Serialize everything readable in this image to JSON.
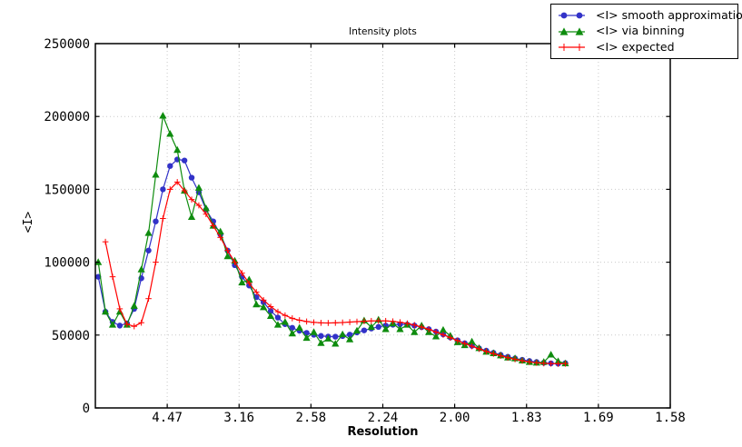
{
  "figure": {
    "background": "#ffffff",
    "frame_color": "#000000",
    "grid_color": "#c9c9c9"
  },
  "axes": {
    "x_range_invd2": [
      0.0,
      0.4
    ],
    "y_range": [
      0,
      250000
    ],
    "grid": "dotted",
    "x_ticks": [
      {
        "v": 0.05,
        "label": "4.47"
      },
      {
        "v": 0.1,
        "label": "3.16"
      },
      {
        "v": 0.15,
        "label": "2.58"
      },
      {
        "v": 0.2,
        "label": "2.24"
      },
      {
        "v": 0.25,
        "label": "2.00"
      },
      {
        "v": 0.3,
        "label": "1.83"
      },
      {
        "v": 0.35,
        "label": "1.69"
      },
      {
        "v": 0.4,
        "label": "1.58"
      }
    ],
    "y_ticks": [
      {
        "v": 0,
        "label": "0"
      },
      {
        "v": 50000,
        "label": "50000"
      },
      {
        "v": 100000,
        "label": "100000"
      },
      {
        "v": 150000,
        "label": "150000"
      },
      {
        "v": 200000,
        "label": "200000"
      },
      {
        "v": 250000,
        "label": "250000"
      }
    ]
  },
  "chart_data": {
    "type": "line",
    "title": "Intensity plots",
    "xlabel": "Resolution",
    "ylabel": "<I>",
    "x_axis_note": "x positions are 1/d^2; tick labels show resolution d in Angstrom",
    "xlim_invd2": [
      0.0,
      0.4
    ],
    "ylim": [
      0,
      250000
    ],
    "legend_position": "top-right",
    "grid": "dotted",
    "x_invd2": [
      0.002,
      0.007,
      0.012,
      0.017,
      0.022,
      0.027,
      0.032,
      0.037,
      0.042,
      0.047,
      0.052,
      0.057,
      0.062,
      0.067,
      0.072,
      0.077,
      0.082,
      0.087,
      0.092,
      0.097,
      0.102,
      0.107,
      0.112,
      0.117,
      0.122,
      0.127,
      0.132,
      0.137,
      0.142,
      0.147,
      0.152,
      0.157,
      0.162,
      0.167,
      0.172,
      0.177,
      0.182,
      0.187,
      0.192,
      0.197,
      0.202,
      0.207,
      0.212,
      0.217,
      0.222,
      0.227,
      0.232,
      0.237,
      0.242,
      0.247,
      0.252,
      0.257,
      0.262,
      0.267,
      0.272,
      0.277,
      0.282,
      0.287,
      0.292,
      0.297,
      0.302,
      0.307,
      0.312,
      0.317,
      0.322,
      0.327
    ],
    "series": [
      {
        "name": "<I> smooth approximation",
        "marker": "circle",
        "color": "#3232c8",
        "values": [
          90000,
          66000,
          59000,
          56500,
          58000,
          68000,
          89000,
          108000,
          128000,
          150000,
          166000,
          170500,
          169800,
          158000,
          148000,
          136000,
          128000,
          119000,
          108000,
          98000,
          90000,
          84000,
          76000,
          72500,
          66500,
          62000,
          57500,
          55000,
          53000,
          51500,
          50200,
          49400,
          49000,
          48900,
          49300,
          50300,
          51800,
          53200,
          54500,
          55600,
          56500,
          57100,
          57400,
          57200,
          56500,
          55400,
          54000,
          52400,
          50500,
          48400,
          46400,
          44400,
          42600,
          40900,
          39300,
          37800,
          36400,
          35100,
          34000,
          33000,
          32200,
          31500,
          31000,
          30600,
          30400,
          30700
        ]
      },
      {
        "name": "<I> via binning",
        "marker": "triangle",
        "color": "#0e8c0e",
        "values": [
          100000,
          66000,
          57000,
          66000,
          57000,
          70000,
          95000,
          120000,
          160000,
          200500,
          188000,
          177000,
          149000,
          131000,
          151000,
          137000,
          125000,
          121000,
          104000,
          101000,
          86000,
          88000,
          71000,
          69000,
          63000,
          57000,
          59000,
          51000,
          55000,
          48000,
          52000,
          44500,
          47500,
          44000,
          50500,
          47000,
          53000,
          60000,
          55500,
          60500,
          54000,
          58000,
          54000,
          57000,
          52000,
          56500,
          52000,
          49000,
          53500,
          49500,
          45000,
          43000,
          45500,
          41000,
          38500,
          37500,
          36000,
          34500,
          34000,
          32500,
          31500,
          31000,
          31500,
          36500,
          32000,
          30500
        ]
      },
      {
        "name": "<I> expected",
        "marker": "plus",
        "color": "#ff0000",
        "values": [
          null,
          114000,
          90000,
          68000,
          57500,
          56000,
          58500,
          75000,
          100000,
          130000,
          150000,
          155000,
          149000,
          143000,
          139000,
          133000,
          125000,
          117000,
          108000,
          100000,
          92500,
          85500,
          79500,
          74000,
          69500,
          66000,
          63500,
          61500,
          60200,
          59300,
          58700,
          58400,
          58300,
          58400,
          58600,
          58900,
          59200,
          59500,
          59700,
          59800,
          59700,
          59400,
          58800,
          58000,
          56900,
          55500,
          53900,
          52100,
          50200,
          48200,
          46200,
          44200,
          42300,
          40500,
          38800,
          37200,
          35800,
          34500,
          33400,
          32400,
          31600,
          31000,
          30600,
          30400,
          30300,
          30400
        ]
      }
    ]
  }
}
